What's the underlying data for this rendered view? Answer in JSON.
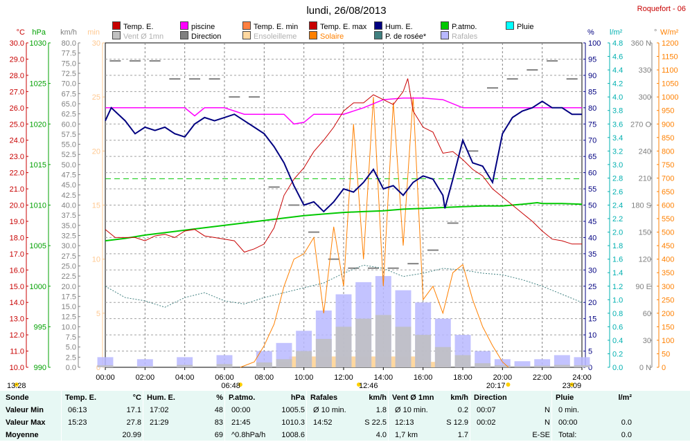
{
  "header": {
    "title": "lundi, 26/08/2013",
    "station": "Roquefort - 06"
  },
  "legend": [
    {
      "label": "Temp. E.",
      "color": "#c80000"
    },
    {
      "label": "piscine",
      "color": "#ff00ff"
    },
    {
      "label": "Temp. E. min",
      "color": "#ff8040"
    },
    {
      "label": "Temp. E. max",
      "color": "#c80000"
    },
    {
      "label": "Hum. E.",
      "color": "#000080"
    },
    {
      "label": "P.atmo.",
      "color": "#00c800"
    },
    {
      "label": "Pluie",
      "color": "#00ffff"
    },
    {
      "label": "Vent Ø 1mn",
      "color": "#c0c0c0"
    },
    {
      "label": "Direction",
      "color": "#808080"
    },
    {
      "label": "Ensoleilleme",
      "color": "#ffd8a0"
    },
    {
      "label": "Solaire",
      "color": "#ff8000"
    },
    {
      "label": "P. de rosée*",
      "color": "#408080"
    },
    {
      "label": "Rafales",
      "color": "#b8b8ff"
    }
  ],
  "axes": {
    "left": [
      {
        "unit": "°C",
        "color": "#c80000",
        "ticks": [
          "30.0",
          "29.0",
          "28.0",
          "27.0",
          "26.0",
          "25.0",
          "24.0",
          "23.0",
          "22.0",
          "21.0",
          "20.0",
          "19.0",
          "18.0",
          "17.0",
          "16.0",
          "15.0",
          "14.0",
          "13.0",
          "12.0",
          "11.0",
          "10.0"
        ]
      },
      {
        "unit": "hPa",
        "color": "#00a000",
        "ticks": [
          "1030",
          "1025",
          "1020",
          "1015",
          "1010",
          "1005",
          "1000",
          "995",
          "990"
        ]
      },
      {
        "unit": "km/h",
        "color": "#808080",
        "ticks": [
          "80.0",
          "77.5",
          "75.0",
          "72.5",
          "70.0",
          "67.5",
          "65.0",
          "62.5",
          "60.0",
          "57.5",
          "55.0",
          "52.5",
          "50.0",
          "47.5",
          "45.0",
          "42.5",
          "40.0",
          "37.5",
          "35.0",
          "32.5",
          "30.0",
          "27.5",
          "25.0",
          "22.5",
          "20.0",
          "17.5",
          "15.0",
          "12.5",
          "10.0",
          "7.5",
          "5.0",
          "2.5",
          "0.0"
        ]
      },
      {
        "unit": "min",
        "color": "#ffc890",
        "ticks": [
          "30",
          "25",
          "20",
          "15",
          "10",
          "5",
          "0"
        ]
      }
    ],
    "right": [
      {
        "unit": "%",
        "color": "#000080",
        "ticks": [
          "100",
          "95",
          "90",
          "85",
          "80",
          "75",
          "70",
          "65",
          "60",
          "55",
          "50",
          "45",
          "40",
          "35",
          "30",
          "25",
          "20",
          "15",
          "10",
          "5",
          "0"
        ]
      },
      {
        "unit": "l/m²",
        "color": "#00b0b0",
        "ticks": [
          "4.8",
          "4.6",
          "4.4",
          "4.2",
          "4.0",
          "3.8",
          "3.6",
          "3.4",
          "3.2",
          "3.0",
          "2.8",
          "2.6",
          "2.4",
          "2.2",
          "2.0",
          "1.8",
          "1.6",
          "1.4",
          "1.2",
          "1.0",
          "0.8",
          "0.6",
          "0.4",
          "0.2",
          "0.0"
        ]
      },
      {
        "unit": "°",
        "color": "#808080",
        "ticks": [
          "360 N",
          "330",
          "300",
          "270 O",
          "240",
          "210",
          "180 S",
          "150",
          "120",
          "90 E",
          "60",
          "30",
          "0 N"
        ]
      },
      {
        "unit": "W/m²",
        "color": "#ff8000",
        "ticks": [
          "1200",
          "1150",
          "1100",
          "1050",
          "1000",
          "950",
          "900",
          "850",
          "800",
          "750",
          "700",
          "650",
          "600",
          "550",
          "500",
          "450",
          "400",
          "350",
          "300",
          "250",
          "200",
          "150",
          "100",
          "50",
          "0"
        ]
      }
    ],
    "x_ticks": [
      "00:00",
      "02:00",
      "04:00",
      "06:00",
      "08:00",
      "10:00",
      "12:00",
      "14:00",
      "16:00",
      "18:00",
      "20:00",
      "22:00",
      "24:00"
    ]
  },
  "sun_marks": {
    "moonrise": "13:28",
    "sunrise": "06:48",
    "noon": "12:46",
    "sunset": "20:17",
    "moonset": "23:09"
  },
  "chart_data": {
    "type": "line",
    "x_unit": "hours",
    "xlim": [
      0,
      24
    ],
    "dew_line_hpa": 1013.25,
    "series": [
      {
        "name": "Temp. E.",
        "axis": "°C",
        "ylim": [
          10,
          30
        ],
        "x": [
          0,
          0.5,
          1,
          1.5,
          2,
          2.5,
          3,
          3.5,
          4,
          4.5,
          5,
          5.5,
          6,
          6.5,
          7,
          7.5,
          8,
          8.5,
          9,
          9.5,
          10,
          10.5,
          11,
          11.5,
          12,
          12.5,
          13,
          13.5,
          14,
          14.5,
          15,
          15.23,
          15.5,
          16,
          16.5,
          17,
          17.5,
          18,
          18.5,
          19,
          19.5,
          20,
          20.5,
          21,
          21.5,
          22,
          22.5,
          23,
          23.5,
          24
        ],
        "y": [
          18.5,
          18.0,
          18.0,
          18.0,
          17.8,
          18.1,
          18.2,
          18.0,
          18.4,
          18.5,
          18.1,
          18.0,
          17.9,
          17.8,
          17.1,
          17.3,
          17.6,
          18.6,
          20.6,
          21.6,
          22.3,
          23.3,
          24.0,
          24.8,
          25.8,
          26.3,
          26.3,
          26.8,
          26.5,
          26.2,
          27.0,
          27.8,
          25.8,
          24.8,
          24.5,
          23.2,
          23.3,
          22.8,
          22.2,
          21.8,
          21.0,
          20.5,
          20.0,
          19.5,
          19.0,
          18.4,
          17.9,
          17.8,
          17.6,
          17.6
        ]
      },
      {
        "name": "piscine",
        "axis": "°C",
        "ylim": [
          10,
          30
        ],
        "x": [
          0,
          4,
          4.5,
          5,
          6,
          7,
          8,
          9,
          9.5,
          10,
          10.5,
          11,
          12,
          13,
          14,
          15,
          16,
          17,
          18,
          19,
          20,
          21,
          22,
          23,
          24
        ],
        "y": [
          26.0,
          26.0,
          25.5,
          26.0,
          26.0,
          25.6,
          25.6,
          25.6,
          25.0,
          25.1,
          25.6,
          25.6,
          25.6,
          26.0,
          26.5,
          26.6,
          26.6,
          26.5,
          26.0,
          26.0,
          26.0,
          26.0,
          26.0,
          26.0,
          26.0
        ]
      },
      {
        "name": "Hum. E.",
        "axis": "%",
        "ylim": [
          0,
          100
        ],
        "x": [
          0,
          0.3,
          1,
          1.5,
          2,
          2.5,
          3,
          3.5,
          4,
          4.5,
          5,
          5.5,
          6,
          6.5,
          7,
          7.5,
          8,
          8.5,
          9,
          9.5,
          10,
          10.5,
          11,
          11.5,
          12,
          12.5,
          13,
          13.5,
          14,
          14.5,
          15,
          15.5,
          16,
          16.5,
          17,
          17.1,
          17.5,
          18,
          18.5,
          19,
          19.5,
          20,
          20.5,
          21,
          21.5,
          22,
          22.5,
          23,
          23.5,
          24
        ],
        "y": [
          76,
          80,
          76,
          72,
          74,
          73,
          74,
          72,
          71,
          75,
          77,
          76,
          77,
          78,
          76,
          74,
          72,
          68,
          63,
          56,
          50,
          51,
          48,
          51,
          55,
          54,
          57,
          61,
          55,
          56,
          53,
          57,
          59,
          58,
          53,
          49,
          58,
          70,
          63,
          62,
          57,
          72,
          77,
          79,
          80,
          82,
          80,
          80,
          78,
          78
        ]
      },
      {
        "name": "P.atmo.",
        "axis": "hPa",
        "ylim": [
          990,
          1030
        ],
        "x": [
          0,
          1,
          2,
          3,
          4,
          5,
          6,
          7,
          8,
          9,
          10,
          11,
          12,
          13,
          14,
          15,
          16,
          17,
          18,
          19,
          20,
          21,
          21.75,
          22,
          23,
          24
        ],
        "y": [
          1005.6,
          1005.9,
          1006.3,
          1006.6,
          1006.9,
          1007.2,
          1007.5,
          1007.8,
          1008.1,
          1008.4,
          1008.7,
          1008.9,
          1009.1,
          1009.2,
          1009.3,
          1009.5,
          1009.6,
          1009.7,
          1009.8,
          1009.9,
          1009.9,
          1010.1,
          1010.3,
          1010.2,
          1010.2,
          1010.1
        ]
      },
      {
        "name": "P. de rosée*",
        "axis": "°C",
        "ylim": [
          10,
          30
        ],
        "x": [
          0,
          1,
          2,
          3,
          4,
          5,
          6,
          7,
          8,
          9,
          10,
          11,
          12,
          13,
          14,
          15,
          16,
          17,
          18,
          19,
          20,
          21,
          22,
          23,
          24
        ],
        "y": [
          15.0,
          14.3,
          14.1,
          13.7,
          14.3,
          14.6,
          14.1,
          13.9,
          14.3,
          14.6,
          14.9,
          15.2,
          15.8,
          16.3,
          16.1,
          15.6,
          15.8,
          16.1,
          16.0,
          15.8,
          15.7,
          15.4,
          15.0,
          14.5,
          14.0
        ]
      },
      {
        "name": "Solaire",
        "axis": "W/m²",
        "ylim": [
          0,
          1200
        ],
        "x": [
          6.8,
          7.5,
          8,
          8.5,
          9,
          9.5,
          10,
          10.5,
          11,
          11.5,
          12,
          12.5,
          13,
          13.5,
          14,
          14.5,
          15,
          15.5,
          16,
          16.5,
          17,
          17.5,
          18,
          18.5,
          19,
          19.5,
          20,
          20.3
        ],
        "y": [
          0,
          20,
          80,
          160,
          300,
          400,
          420,
          480,
          200,
          520,
          300,
          900,
          400,
          1000,
          300,
          980,
          450,
          1000,
          250,
          300,
          200,
          350,
          380,
          250,
          150,
          80,
          20,
          0
        ]
      },
      {
        "name": "Rafales",
        "axis": "km/h",
        "ylim": [
          0,
          80
        ],
        "x": [
          0,
          2,
          4,
          6,
          8,
          9,
          10,
          11,
          12,
          13,
          14,
          15,
          16,
          17,
          18,
          19,
          20,
          21,
          22,
          23,
          24
        ],
        "y": [
          2.5,
          2.0,
          2.5,
          3.0,
          4.0,
          6.0,
          9.0,
          14.0,
          18.0,
          21.0,
          22.5,
          19.0,
          16.0,
          12.0,
          8.0,
          4.0,
          2.0,
          1.5,
          2.0,
          3.0,
          2.5
        ]
      },
      {
        "name": "Vent Ø 1mn",
        "axis": "km/h",
        "ylim": [
          0,
          80
        ],
        "x": [
          0,
          2,
          4,
          6,
          8,
          9,
          10,
          11,
          12,
          13,
          14,
          15,
          16,
          17,
          18,
          19,
          20,
          21,
          22,
          23,
          24
        ],
        "y": [
          0.5,
          0.3,
          0.6,
          0.8,
          1.2,
          2.0,
          4.0,
          7.0,
          10.0,
          12.0,
          12.9,
          10.0,
          8.0,
          5.0,
          3.0,
          1.0,
          0.5,
          0.3,
          0.4,
          0.6,
          0.5
        ]
      },
      {
        "name": "Direction",
        "axis": "°",
        "ylim": [
          0,
          360
        ],
        "x": [
          0.5,
          1.5,
          2.5,
          3.5,
          4.5,
          5.5,
          6.5,
          7.5,
          8.5,
          9.5,
          10.5,
          11.5,
          12.5,
          13.5,
          14.5,
          15.5,
          16.5,
          17.5,
          18.5,
          19.5,
          20.5,
          21.5,
          22.5,
          23.5
        ],
        "y": [
          340,
          340,
          340,
          320,
          320,
          320,
          300,
          300,
          200,
          180,
          150,
          120,
          110,
          110,
          110,
          115,
          130,
          160,
          240,
          310,
          320,
          330,
          340,
          320
        ]
      },
      {
        "name": "Ensoleilleme",
        "axis": "min",
        "ylim": [
          0,
          30
        ],
        "x": [
          9,
          9.5,
          10,
          10.5,
          11,
          11.5,
          12,
          12.5,
          13,
          13.5,
          14,
          14.5,
          15,
          15.5,
          16,
          16.5,
          17
        ],
        "y": [
          0.5,
          1,
          1,
          1,
          1,
          1,
          1,
          1,
          1,
          1,
          1,
          1,
          1,
          1,
          0.5,
          0.5,
          0.3
        ]
      }
    ]
  },
  "stats": {
    "headers": [
      {
        "label": "Sonde",
        "unit": ""
      },
      {
        "label": "Temp. E.",
        "unit": "°C"
      },
      {
        "label": "Hum. E.",
        "unit": "%"
      },
      {
        "label": "P.atmo.",
        "unit": "hPa"
      },
      {
        "label": "Rafales",
        "unit": "km/h"
      },
      {
        "label": "Vent Ø 1mn",
        "unit": "km/h"
      },
      {
        "label": "Direction",
        "unit": ""
      },
      {
        "label": "Pluie",
        "unit": "l/m²"
      }
    ],
    "rows": [
      {
        "label": "Valeur Min",
        "cells": [
          [
            "06:13",
            "17.1"
          ],
          [
            "17:02",
            "48"
          ],
          [
            "00:00",
            "1005.5"
          ],
          [
            "Ø 10 min.",
            "1.8"
          ],
          [
            "Ø 10 min.",
            "0.2"
          ],
          [
            "00:07",
            "N"
          ],
          [
            "0 min.",
            ""
          ]
        ]
      },
      {
        "label": "Valeur Max",
        "cells": [
          [
            "15:23",
            "27.8"
          ],
          [
            "21:29",
            "83"
          ],
          [
            "21:45",
            "1010.3"
          ],
          [
            "14:52",
            "S 22.5"
          ],
          [
            "12:13",
            "S 12.9"
          ],
          [
            "00:02",
            "N"
          ],
          [
            "00:00",
            "0.0"
          ]
        ]
      },
      {
        "label": "Moyenne",
        "cells": [
          [
            "",
            "20.99"
          ],
          [
            "",
            "69"
          ],
          [
            "^0.8hPa/h",
            "1008.6"
          ],
          [
            "",
            "4.0"
          ],
          [
            "1,7 km",
            "1.7"
          ],
          [
            "",
            "E-SE"
          ],
          [
            "Total:",
            "0.0"
          ]
        ]
      }
    ]
  }
}
